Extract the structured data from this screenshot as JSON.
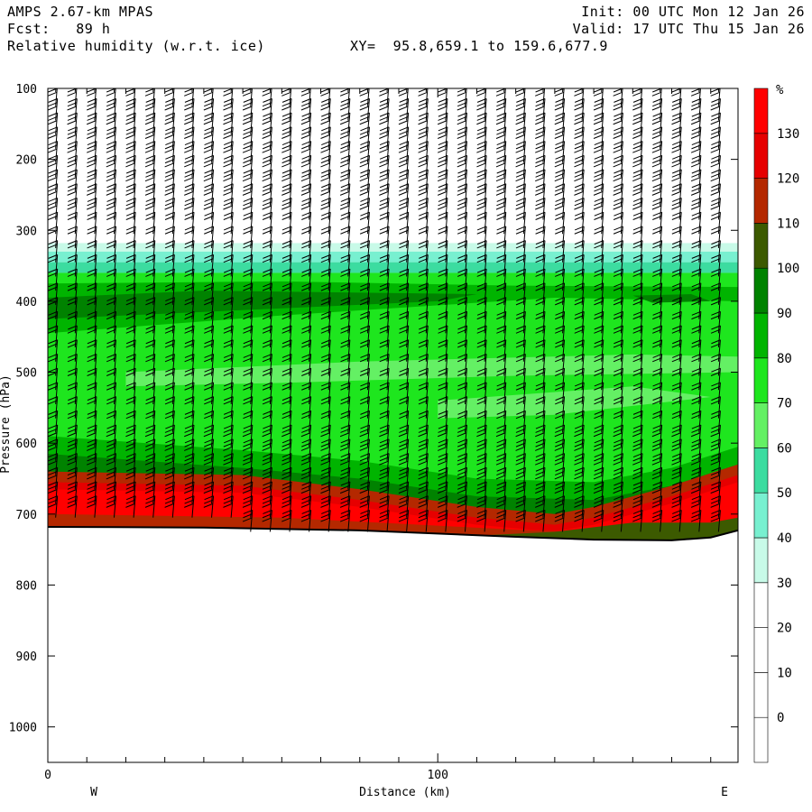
{
  "header": {
    "model": "AMPS 2.67-km MPAS",
    "fcst_label": "Fcst:",
    "fcst_value": "89 h",
    "field": "Relative humidity (w.r.t. ice)",
    "xy": "XY=  95.8,659.1 to 159.6,677.9",
    "init": "Init: 00 UTC Mon 12 Jan 26",
    "valid": "Valid: 17 UTC Thu 15 Jan 26"
  },
  "chart_data": {
    "type": "heatmap",
    "ylabel": "Pressure (hPa)",
    "xlabel": "Distance (km)",
    "y_axis": {
      "inverted": true,
      "ticks": [
        100,
        200,
        300,
        400,
        500,
        600,
        700,
        800,
        900,
        1000
      ],
      "ylim": [
        100,
        1050
      ]
    },
    "x_axis": {
      "ticks": [
        0,
        100
      ],
      "xlim": [
        0,
        177
      ],
      "left_label": "W",
      "right_label": "E"
    },
    "colorbar": {
      "unit": "%",
      "ticks": [
        0,
        10,
        20,
        30,
        40,
        50,
        60,
        70,
        80,
        90,
        100,
        110,
        120,
        130
      ],
      "bins": [
        {
          "from": -10,
          "to": 0,
          "color": "#ffffff"
        },
        {
          "from": 0,
          "to": 10,
          "color": "#ffffff"
        },
        {
          "from": 10,
          "to": 20,
          "color": "#ffffff"
        },
        {
          "from": 20,
          "to": 30,
          "color": "#ffffff"
        },
        {
          "from": 30,
          "to": 40,
          "color": "#c8fae8"
        },
        {
          "from": 40,
          "to": 50,
          "color": "#78f0d0"
        },
        {
          "from": 50,
          "to": 60,
          "color": "#3cdca0"
        },
        {
          "from": 60,
          "to": 70,
          "color": "#64f064"
        },
        {
          "from": 70,
          "to": 80,
          "color": "#1ee61e"
        },
        {
          "from": 80,
          "to": 90,
          "color": "#00b400"
        },
        {
          "from": 90,
          "to": 100,
          "color": "#008200"
        },
        {
          "from": 100,
          "to": 110,
          "color": "#3c5a00"
        },
        {
          "from": 110,
          "to": 120,
          "color": "#b42800"
        },
        {
          "from": 120,
          "to": 130,
          "color": "#e60000"
        },
        {
          "from": 130,
          "to": 140,
          "color": "#ff0000"
        }
      ]
    },
    "layers": [
      {
        "range": "above 320 hPa",
        "rh": "<30"
      },
      {
        "range": "320-345 hPa",
        "rh": "30-60"
      },
      {
        "range": "345-380 hPa",
        "rh": "60-80"
      },
      {
        "range": "380-450 hPa",
        "rh": "80-90"
      },
      {
        "range": "450-580 hPa",
        "rh": "70-80"
      },
      {
        "range": "580-640 hPa",
        "rh": "80-100"
      },
      {
        "range": "640-720 hPa",
        "rh": "110-140"
      }
    ],
    "terrain_hpa": [
      {
        "x": 0,
        "p": 718
      },
      {
        "x": 40,
        "p": 719
      },
      {
        "x": 80,
        "p": 723
      },
      {
        "x": 120,
        "p": 732
      },
      {
        "x": 140,
        "p": 736
      },
      {
        "x": 160,
        "p": 737
      },
      {
        "x": 170,
        "p": 733
      },
      {
        "x": 177,
        "p": 723
      }
    ],
    "surface_profile_hpa": {
      "moist_top": [
        {
          "x": 0,
          "p": 640
        },
        {
          "x": 50,
          "p": 645
        },
        {
          "x": 80,
          "p": 665
        },
        {
          "x": 110,
          "p": 690
        },
        {
          "x": 130,
          "p": 700
        },
        {
          "x": 140,
          "p": 690
        },
        {
          "x": 160,
          "p": 660
        },
        {
          "x": 177,
          "p": 630
        }
      ],
      "green_top": [
        {
          "x": 0,
          "p": 590
        },
        {
          "x": 50,
          "p": 610
        },
        {
          "x": 80,
          "p": 625
        },
        {
          "x": 110,
          "p": 650
        },
        {
          "x": 140,
          "p": 655
        },
        {
          "x": 160,
          "p": 635
        },
        {
          "x": 177,
          "p": 605
        }
      ]
    }
  }
}
